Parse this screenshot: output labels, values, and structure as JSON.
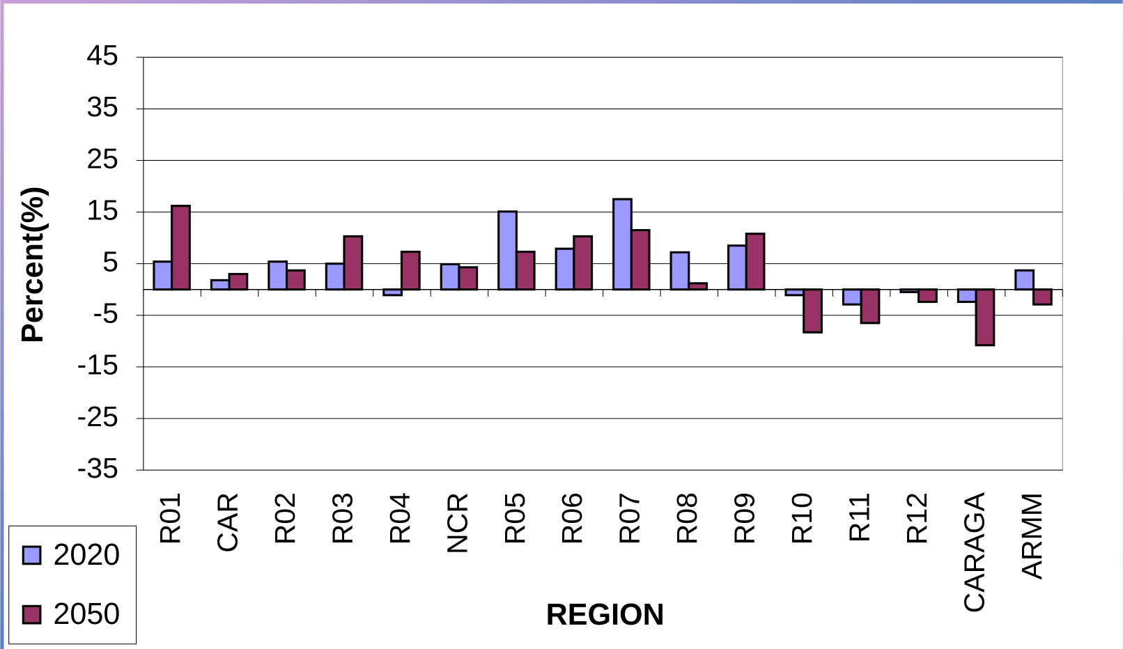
{
  "chart_data": {
    "type": "bar",
    "x_label": "REGION",
    "y_label": "Percent(%)",
    "categories": [
      "R01",
      "CAR",
      "R02",
      "R03",
      "R04",
      "NCR",
      "R05",
      "R06",
      "R07",
      "R08",
      "R09",
      "R10",
      "R11",
      "R12",
      "CARAGA",
      "ARMM"
    ],
    "series": [
      {
        "name": "2020",
        "color": "#9999ff",
        "values": [
          5.4,
          1.8,
          5.4,
          5.0,
          -1.1,
          4.9,
          15.1,
          7.9,
          17.5,
          7.2,
          8.5,
          -1.1,
          -2.9,
          -0.5,
          -2.4,
          3.7
        ]
      },
      {
        "name": "2050",
        "color": "#993366",
        "values": [
          16.2,
          3.0,
          3.7,
          10.3,
          7.3,
          4.3,
          7.3,
          10.3,
          11.5,
          1.2,
          10.8,
          -8.3,
          -6.5,
          -2.4,
          -10.8,
          -2.9
        ]
      }
    ],
    "ylim": [
      -35,
      45
    ],
    "yticks": [
      45,
      35,
      25,
      15,
      5,
      -5,
      -15,
      -25,
      -35
    ],
    "grid": true,
    "legend": "bottom-left"
  }
}
